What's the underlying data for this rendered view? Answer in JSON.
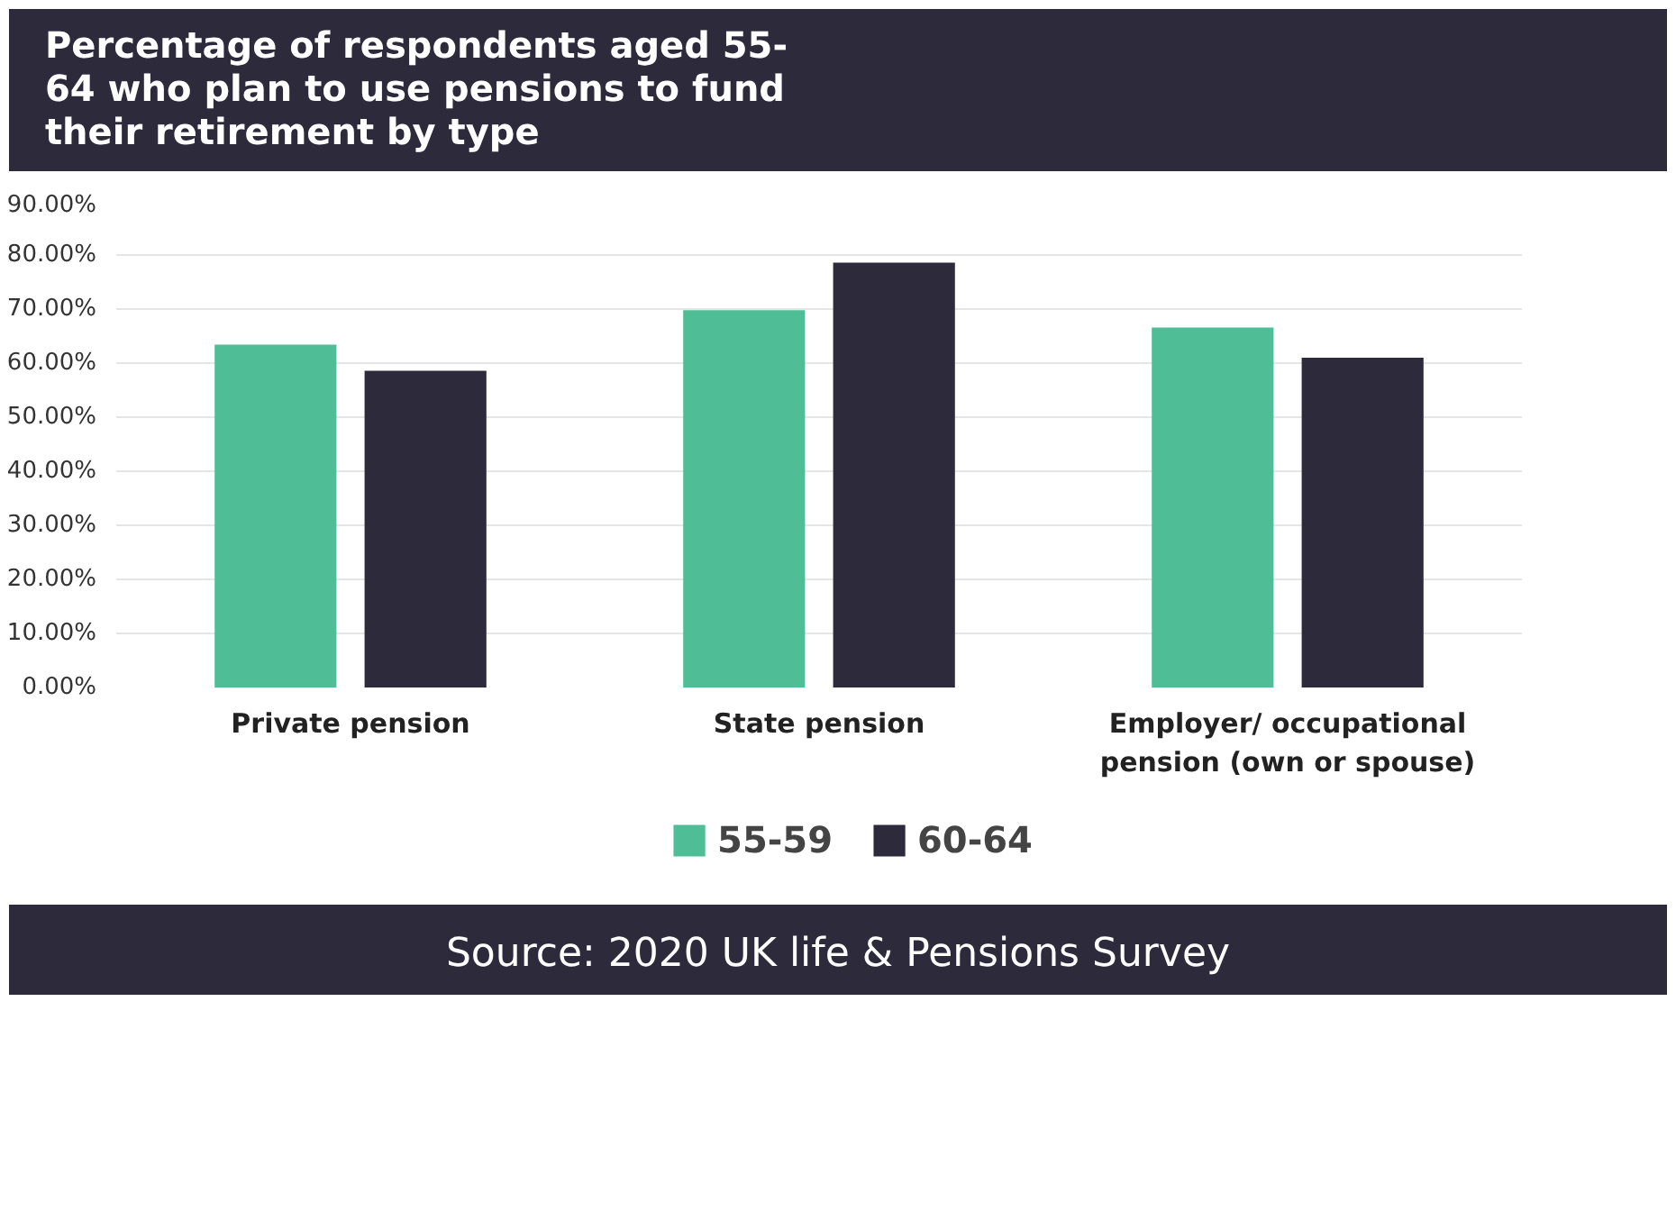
{
  "chart_data": {
    "type": "bar",
    "title": "Percentage of respondents aged 55-64 who plan to use pensions to fund their retirement by type",
    "categories": [
      "Private pension",
      "State pension",
      "Employer/ occupational pension (own or spouse)"
    ],
    "series": [
      {
        "name": "55-59",
        "color": "#4fbd95",
        "values": [
          63.4,
          69.8,
          66.6
        ]
      },
      {
        "name": "60-64",
        "color": "#2c2a3b",
        "values": [
          58.6,
          78.6,
          61.0
        ]
      }
    ],
    "ylim": [
      0,
      90
    ],
    "yticks": [
      {
        "value": 0,
        "label": "0.00%"
      },
      {
        "value": 10,
        "label": "10.00%"
      },
      {
        "value": 20,
        "label": "20.00%"
      },
      {
        "value": 30,
        "label": "30.00%"
      },
      {
        "value": 40,
        "label": "40.00%"
      },
      {
        "value": 50,
        "label": "50.00%"
      },
      {
        "value": 60,
        "label": "60.00%"
      },
      {
        "value": 70,
        "label": "70.00%"
      },
      {
        "value": 80,
        "label": "80.00%"
      },
      {
        "value": 90,
        "label": "90.00%"
      }
    ],
    "grid": "y",
    "legend": "bottom",
    "annotations": [
      "Source: 2020 UK life & Pensions Survey"
    ]
  }
}
